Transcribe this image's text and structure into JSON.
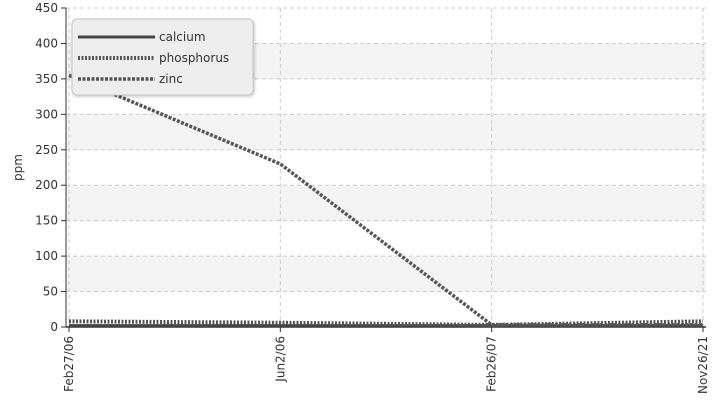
{
  "chart_data": {
    "type": "line",
    "title": "",
    "xlabel": "",
    "ylabel": "ppm",
    "categories": [
      "Feb27/06",
      "Jun2/06",
      "Feb26/07",
      "Nov26/21"
    ],
    "ylim": [
      0,
      450
    ],
    "yticks": [
      0,
      50,
      100,
      150,
      200,
      250,
      300,
      350,
      400,
      450
    ],
    "grid": true,
    "legend_position": "top-left",
    "series": [
      {
        "name": "calcium",
        "values": [
          2,
          2,
          2,
          2
        ],
        "color": "#444444",
        "style": "solid"
      },
      {
        "name": "phosphorus",
        "values": [
          8,
          6,
          3,
          8
        ],
        "color": "#555555",
        "style": "dotted"
      },
      {
        "name": "zinc",
        "values": [
          355,
          230,
          3,
          3
        ],
        "color": "#555555",
        "style": "dashed"
      }
    ]
  }
}
